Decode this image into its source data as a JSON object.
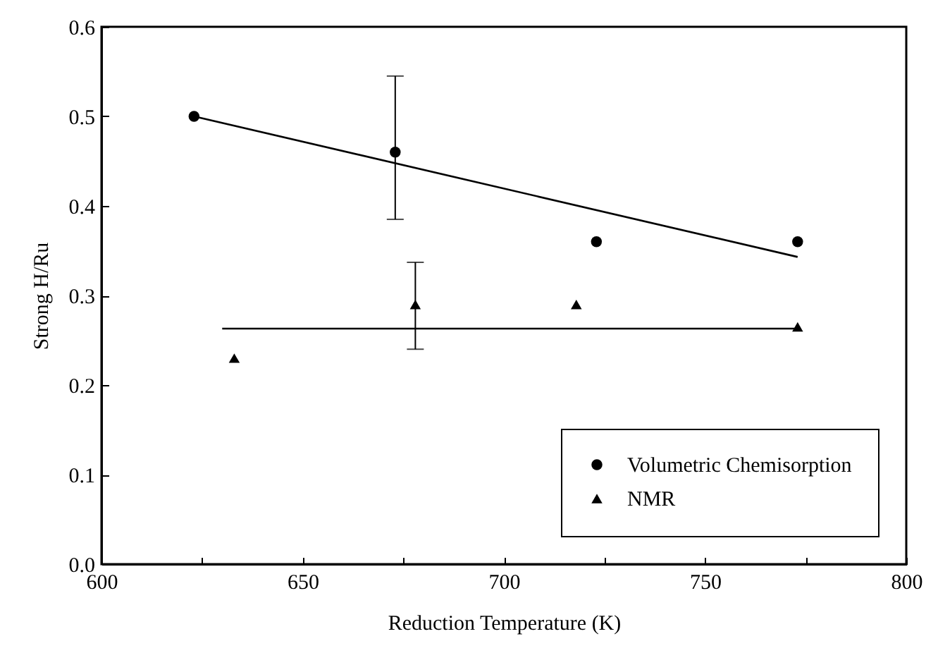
{
  "chart_data": {
    "type": "scatter",
    "xlabel": "Reduction Temperature (K)",
    "ylabel": "Strong H/Ru",
    "xlim": [
      600,
      800
    ],
    "xticks": [
      600,
      {
        "value": 625,
        "label": null
      },
      650,
      {
        "value": 675,
        "label": null
      },
      700,
      {
        "value": 725,
        "label": null
      },
      750,
      {
        "value": 775,
        "label": null
      },
      800
    ],
    "ylim": [
      0,
      0.6
    ],
    "yticks": [
      {
        "value": 0,
        "label": "0.0"
      },
      0.1,
      0.2,
      0.3,
      0.4,
      0.5,
      0.6
    ],
    "grid": false,
    "legend": "bottom right",
    "series": [
      {
        "name": "Volumetric Chemisorption",
        "color": "#000000",
        "marker": "circle",
        "x": [
          623,
          673,
          723,
          773
        ],
        "values": [
          0.5,
          0.46,
          0.36,
          0.36
        ],
        "errors": [
          null,
          [
            0.385,
            0.545
          ],
          null,
          null
        ]
      },
      {
        "name": "NMR",
        "color": "#000000",
        "marker": "triangle",
        "x": [
          633,
          678,
          718,
          773
        ],
        "values": [
          0.23,
          0.29,
          0.29,
          0.265
        ],
        "errors": [
          null,
          [
            0.24,
            0.337
          ],
          null,
          null
        ]
      },
      {
        "type": "line",
        "color": "#000000",
        "marker": "none",
        "x": [
          623,
          773
        ],
        "values": [
          0.5,
          0.343
        ]
      },
      {
        "type": "line",
        "color": "#000000",
        "marker": "none",
        "x": [
          630,
          773
        ],
        "values": [
          0.263,
          0.263
        ]
      }
    ]
  }
}
